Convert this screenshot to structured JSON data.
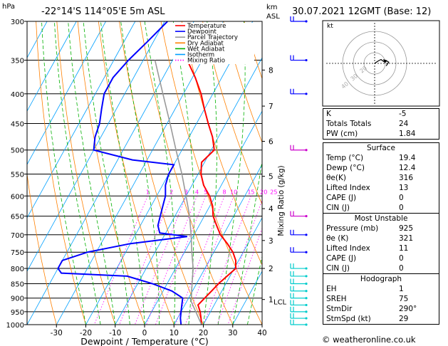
{
  "header": {
    "hpa_unit": "hPa",
    "location": "-22°14'S 114°05'E 5m ASL",
    "km_unit": "km",
    "asl_unit": "ASL",
    "datetime": "30.07.2021 12GMT (Base: 12)"
  },
  "legend": [
    {
      "label": "Temperature",
      "color": "#ff0000",
      "style": "solid"
    },
    {
      "label": "Dewpoint",
      "color": "#0000ff",
      "style": "solid"
    },
    {
      "label": "Parcel Trajectory",
      "color": "#999999",
      "style": "solid"
    },
    {
      "label": "Dry Adiabat",
      "color": "#ff8000",
      "style": "solid"
    },
    {
      "label": "Wet Adiabat",
      "color": "#00b000",
      "style": "solid"
    },
    {
      "label": "Isotherm",
      "color": "#00a0ff",
      "style": "solid"
    },
    {
      "label": "Mixing Ratio",
      "color": "#ff00ff",
      "style": "dotted"
    }
  ],
  "colors": {
    "temperature": "#ff0000",
    "dewpoint": "#0000ff",
    "parcel": "#999999",
    "dry_adiabat": "#ff8000",
    "wet_adiabat": "#00b000",
    "isotherm": "#00a0ff",
    "mixing_ratio": "#ff00ff",
    "wind_barb": "#00cccc"
  },
  "chart_data": {
    "type": "line",
    "xlabel": "Dewpoint / Temperature (°C)",
    "x_ticks": [
      -30,
      -20,
      -10,
      0,
      10,
      20,
      30,
      40
    ],
    "pressure_ticks": [
      300,
      350,
      400,
      450,
      500,
      550,
      600,
      650,
      700,
      750,
      800,
      850,
      900,
      950,
      1000
    ],
    "km_ticks": [
      {
        "label": "8",
        "p": 364
      },
      {
        "label": "7",
        "p": 420
      },
      {
        "label": "6",
        "p": 483
      },
      {
        "label": "5",
        "p": 555
      },
      {
        "label": "4",
        "p": 631
      },
      {
        "label": "3",
        "p": 716
      },
      {
        "label": "2",
        "p": 800
      },
      {
        "label": "1",
        "p": 905
      }
    ],
    "lcl_label": "LCL",
    "lcl_pressure": 912,
    "right_axis_label": "Mixing Ratio (g/kg)",
    "mixing_ratio_labels": [
      "1",
      "2",
      "3",
      "4",
      "5",
      "8",
      "10",
      "15",
      "20",
      "25"
    ],
    "mixing_ratio_values": [
      1,
      2,
      3,
      4,
      5,
      8,
      10,
      15,
      20,
      25
    ],
    "skew": 45,
    "series": [
      {
        "name": "Temperature",
        "points": [
          [
            1000,
            19.4
          ],
          [
            975,
            18
          ],
          [
            950,
            16.5
          ],
          [
            925,
            14.5
          ],
          [
            900,
            15.5
          ],
          [
            875,
            16.5
          ],
          [
            850,
            17.5
          ],
          [
            825,
            19
          ],
          [
            800,
            20.5
          ],
          [
            775,
            19
          ],
          [
            750,
            16.5
          ],
          [
            725,
            13
          ],
          [
            700,
            9
          ],
          [
            675,
            6
          ],
          [
            650,
            3
          ],
          [
            625,
            1
          ],
          [
            600,
            -2
          ],
          [
            575,
            -6
          ],
          [
            550,
            -9
          ],
          [
            525,
            -11
          ],
          [
            500,
            -9
          ],
          [
            475,
            -12
          ],
          [
            450,
            -16
          ],
          [
            425,
            -20
          ],
          [
            400,
            -24
          ],
          [
            375,
            -29
          ],
          [
            350,
            -35
          ]
        ]
      },
      {
        "name": "Dewpoint",
        "points": [
          [
            1000,
            12.4
          ],
          [
            975,
            11
          ],
          [
            950,
            10
          ],
          [
            925,
            9
          ],
          [
            900,
            8
          ],
          [
            875,
            3
          ],
          [
            850,
            -5
          ],
          [
            825,
            -15
          ],
          [
            815,
            -38
          ],
          [
            800,
            -40
          ],
          [
            775,
            -40
          ],
          [
            750,
            -33
          ],
          [
            725,
            -20
          ],
          [
            705,
            -2
          ],
          [
            695,
            -12
          ],
          [
            675,
            -14
          ],
          [
            650,
            -15
          ],
          [
            625,
            -16
          ],
          [
            600,
            -17
          ],
          [
            575,
            -19
          ],
          [
            550,
            -20
          ],
          [
            530,
            -20
          ],
          [
            520,
            -35
          ],
          [
            500,
            -50
          ],
          [
            475,
            -52
          ],
          [
            450,
            -53
          ],
          [
            425,
            -55
          ],
          [
            400,
            -57
          ],
          [
            375,
            -57
          ],
          [
            350,
            -55
          ],
          [
            325,
            -52
          ],
          [
            300,
            -49
          ]
        ]
      },
      {
        "name": "Parcel Trajectory",
        "points": [
          [
            1000,
            19.4
          ],
          [
            950,
            15
          ],
          [
            912,
            11.5
          ],
          [
            850,
            8.5
          ],
          [
            800,
            6
          ],
          [
            750,
            2.5
          ],
          [
            700,
            -1
          ],
          [
            650,
            -5
          ],
          [
            600,
            -10
          ],
          [
            550,
            -15.5
          ],
          [
            500,
            -22
          ],
          [
            450,
            -29
          ],
          [
            400,
            -37
          ],
          [
            350,
            -46
          ]
        ]
      }
    ],
    "wind_barbs_p": [
      1000,
      975,
      950,
      925,
      900,
      875,
      850,
      825,
      800,
      750,
      700,
      650,
      500,
      400,
      350,
      300
    ]
  },
  "stats": {
    "index_rows": [
      {
        "label": "K",
        "value": "-5"
      },
      {
        "label": "Totals Totals",
        "value": "24"
      },
      {
        "label": "PW (cm)",
        "value": "1.84"
      }
    ],
    "surface": {
      "title": "Surface",
      "rows": [
        {
          "label": "Temp (°C)",
          "value": "19.4"
        },
        {
          "label": "Dewp (°C)",
          "value": "12.4"
        },
        {
          "label": "θe(K)",
          "value": "316"
        },
        {
          "label": "Lifted Index",
          "value": "13"
        },
        {
          "label": "CAPE (J)",
          "value": "0"
        },
        {
          "label": "CIN (J)",
          "value": "0"
        }
      ]
    },
    "most_unstable": {
      "title": "Most Unstable",
      "rows": [
        {
          "label": "Pressure (mb)",
          "value": "925"
        },
        {
          "label": "θe (K)",
          "value": "321"
        },
        {
          "label": "Lifted Index",
          "value": "11"
        },
        {
          "label": "CAPE (J)",
          "value": "0"
        },
        {
          "label": "CIN (J)",
          "value": "0"
        }
      ]
    },
    "hodograph": {
      "title": "Hodograph",
      "rows": [
        {
          "label": "EH",
          "value": "1"
        },
        {
          "label": "SREH",
          "value": "75"
        },
        {
          "label": "StmDir",
          "value": "290°"
        },
        {
          "label": "StmSpd (kt)",
          "value": "29"
        }
      ]
    }
  },
  "hodograph_plot": {
    "unit_label": "kt",
    "ring_labels": [
      "20",
      "30",
      "40"
    ],
    "trace_kt": [
      [
        0,
        0
      ],
      [
        6,
        4
      ],
      [
        10,
        6
      ],
      [
        14,
        3
      ],
      [
        18,
        4
      ],
      [
        22,
        2
      ],
      [
        18,
        -4
      ]
    ]
  },
  "credit": "© weatheronline.co.uk"
}
